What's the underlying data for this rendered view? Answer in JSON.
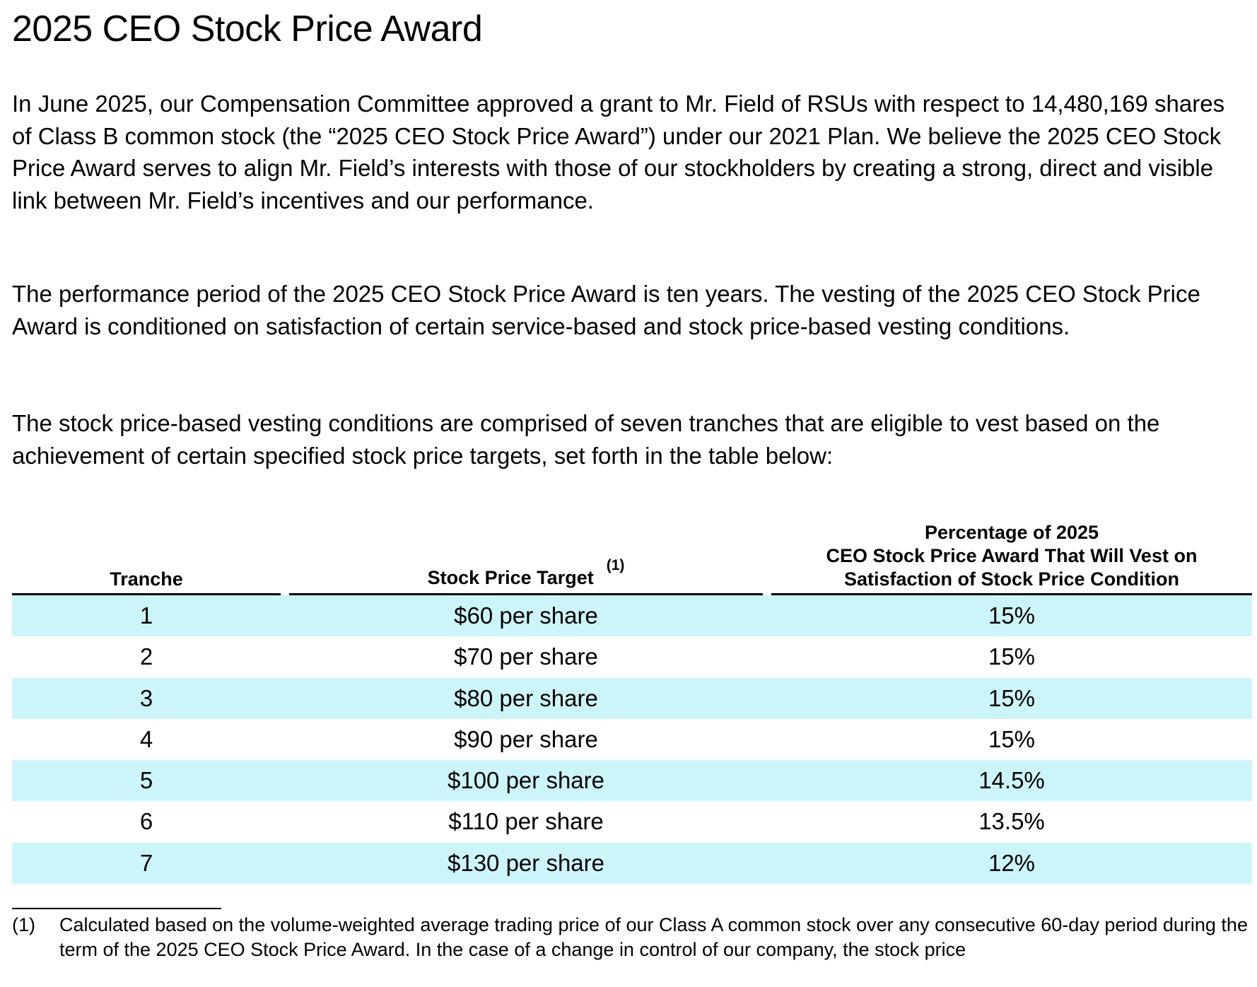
{
  "title": "2025 CEO Stock Price Award",
  "paragraphs": [
    "In June 2025, our Compensation Committee approved a grant to Mr. Field of RSUs with respect to 14,480,169 shares of Class B common stock (the “2025 CEO Stock Price Award”) under our 2021 Plan. We believe the 2025 CEO Stock Price Award serves to align Mr. Field’s interests with those of our stockholders by creating a strong, direct and visible link between Mr. Field’s incentives and our performance.",
    "The performance period of the 2025 CEO Stock Price Award is ten years. The vesting of the 2025 CEO Stock Price Award is conditioned on satisfaction of certain service-based and stock price-based vesting conditions.",
    "The stock price-based vesting conditions are comprised of seven tranches that are eligible to vest based on the achievement of certain specified stock price targets, set forth in the table below:"
  ],
  "table": {
    "headers": {
      "tranche": "Tranche",
      "target": "Stock Price Target",
      "target_note": "(1)",
      "percentage_line1": "Percentage of 2025",
      "percentage_line2": "CEO Stock Price Award That Will Vest on",
      "percentage_line3": "Satisfaction of Stock Price Condition"
    },
    "rows": [
      {
        "tranche": "1",
        "target": "$60 per share",
        "percentage": "15%"
      },
      {
        "tranche": "2",
        "target": "$70 per share",
        "percentage": "15%"
      },
      {
        "tranche": "3",
        "target": "$80 per share",
        "percentage": "15%"
      },
      {
        "tranche": "4",
        "target": "$90 per share",
        "percentage": "15%"
      },
      {
        "tranche": "5",
        "target": "$100 per share",
        "percentage": "14.5%"
      },
      {
        "tranche": "6",
        "target": "$110 per share",
        "percentage": "13.5%"
      },
      {
        "tranche": "7",
        "target": "$130 per share",
        "percentage": "12%"
      }
    ]
  },
  "footnote": {
    "marker": "(1)",
    "text": "Calculated based on the volume-weighted average trading price of our Class A common stock over any consecutive 60-day period during the term of the 2025 CEO Stock Price Award. In the case of a change in control of our company, the stock price"
  },
  "colors": {
    "row_shade": "#ccf5fa",
    "text": "#000000"
  }
}
